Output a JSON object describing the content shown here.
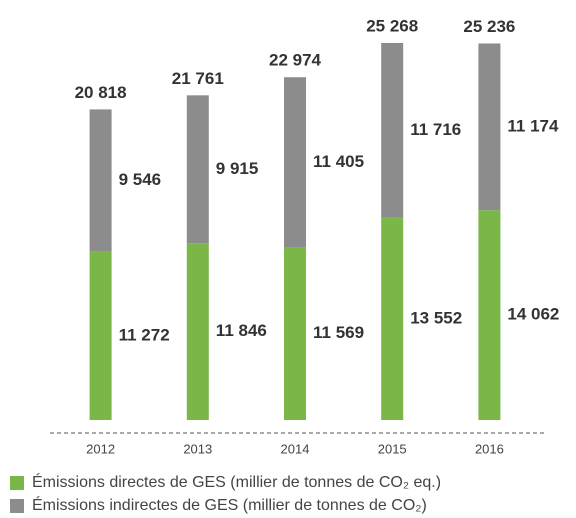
{
  "chart_data": {
    "type": "stacked_bar",
    "categories": [
      "2012",
      "2013",
      "2014",
      "2015",
      "2016"
    ],
    "series": [
      {
        "name": "Émissions directes de GES (millier de tonnes de CO₂ eq.)",
        "color": "#7ab648",
        "values": [
          11272,
          11846,
          11569,
          13552,
          14062
        ],
        "value_labels": [
          "11 272",
          "11 846",
          "11 569",
          "13 552",
          "14 062"
        ]
      },
      {
        "name": "Émissions indirectes de GES (millier de tonnes de CO₂)",
        "color": "#8c8c8c",
        "values": [
          9546,
          9915,
          11405,
          11716,
          11174
        ],
        "value_labels": [
          "9 546",
          "9 915",
          "11 405",
          "11 716",
          "11 174"
        ]
      }
    ],
    "totals": [
      20818,
      21761,
      22974,
      25268,
      25236
    ],
    "total_labels": [
      "20 818",
      "21 761",
      "22 974",
      "25 268",
      "25 236"
    ]
  }
}
